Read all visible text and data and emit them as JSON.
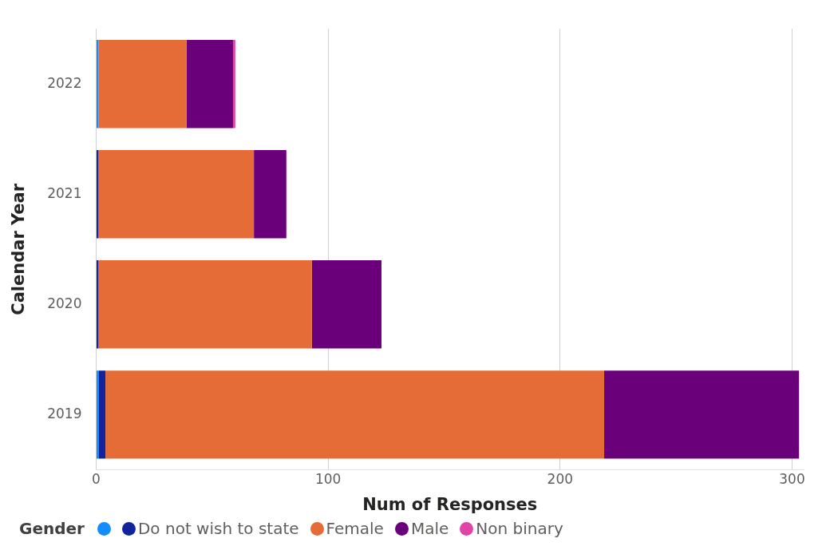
{
  "chart_data": {
    "type": "bar",
    "orientation": "horizontal",
    "stacked": true,
    "xlabel": "Num of Responses",
    "ylabel": "Calendar Year",
    "legend_title": "Gender",
    "categories": [
      "2022",
      "2021",
      "2020",
      "2019"
    ],
    "series": [
      {
        "color": "#118dff",
        "values": [
          1,
          0,
          0,
          1
        ]
      },
      {
        "name": "Do not wish to state",
        "color": "#12239e",
        "values": [
          0,
          1,
          1,
          3
        ]
      },
      {
        "name": "Female",
        "color": "#e66c37",
        "values": [
          38,
          67,
          92,
          215
        ]
      },
      {
        "name": "Male",
        "color": "#6b007b",
        "values": [
          20,
          14,
          30,
          84
        ]
      },
      {
        "name": "Non binary",
        "color": "#e044a7",
        "values": [
          1,
          0,
          0,
          0
        ]
      }
    ],
    "xlim": [
      0,
      305
    ],
    "xticks": [
      0,
      100,
      200,
      300
    ],
    "grid": "x",
    "legend": "bottom"
  }
}
